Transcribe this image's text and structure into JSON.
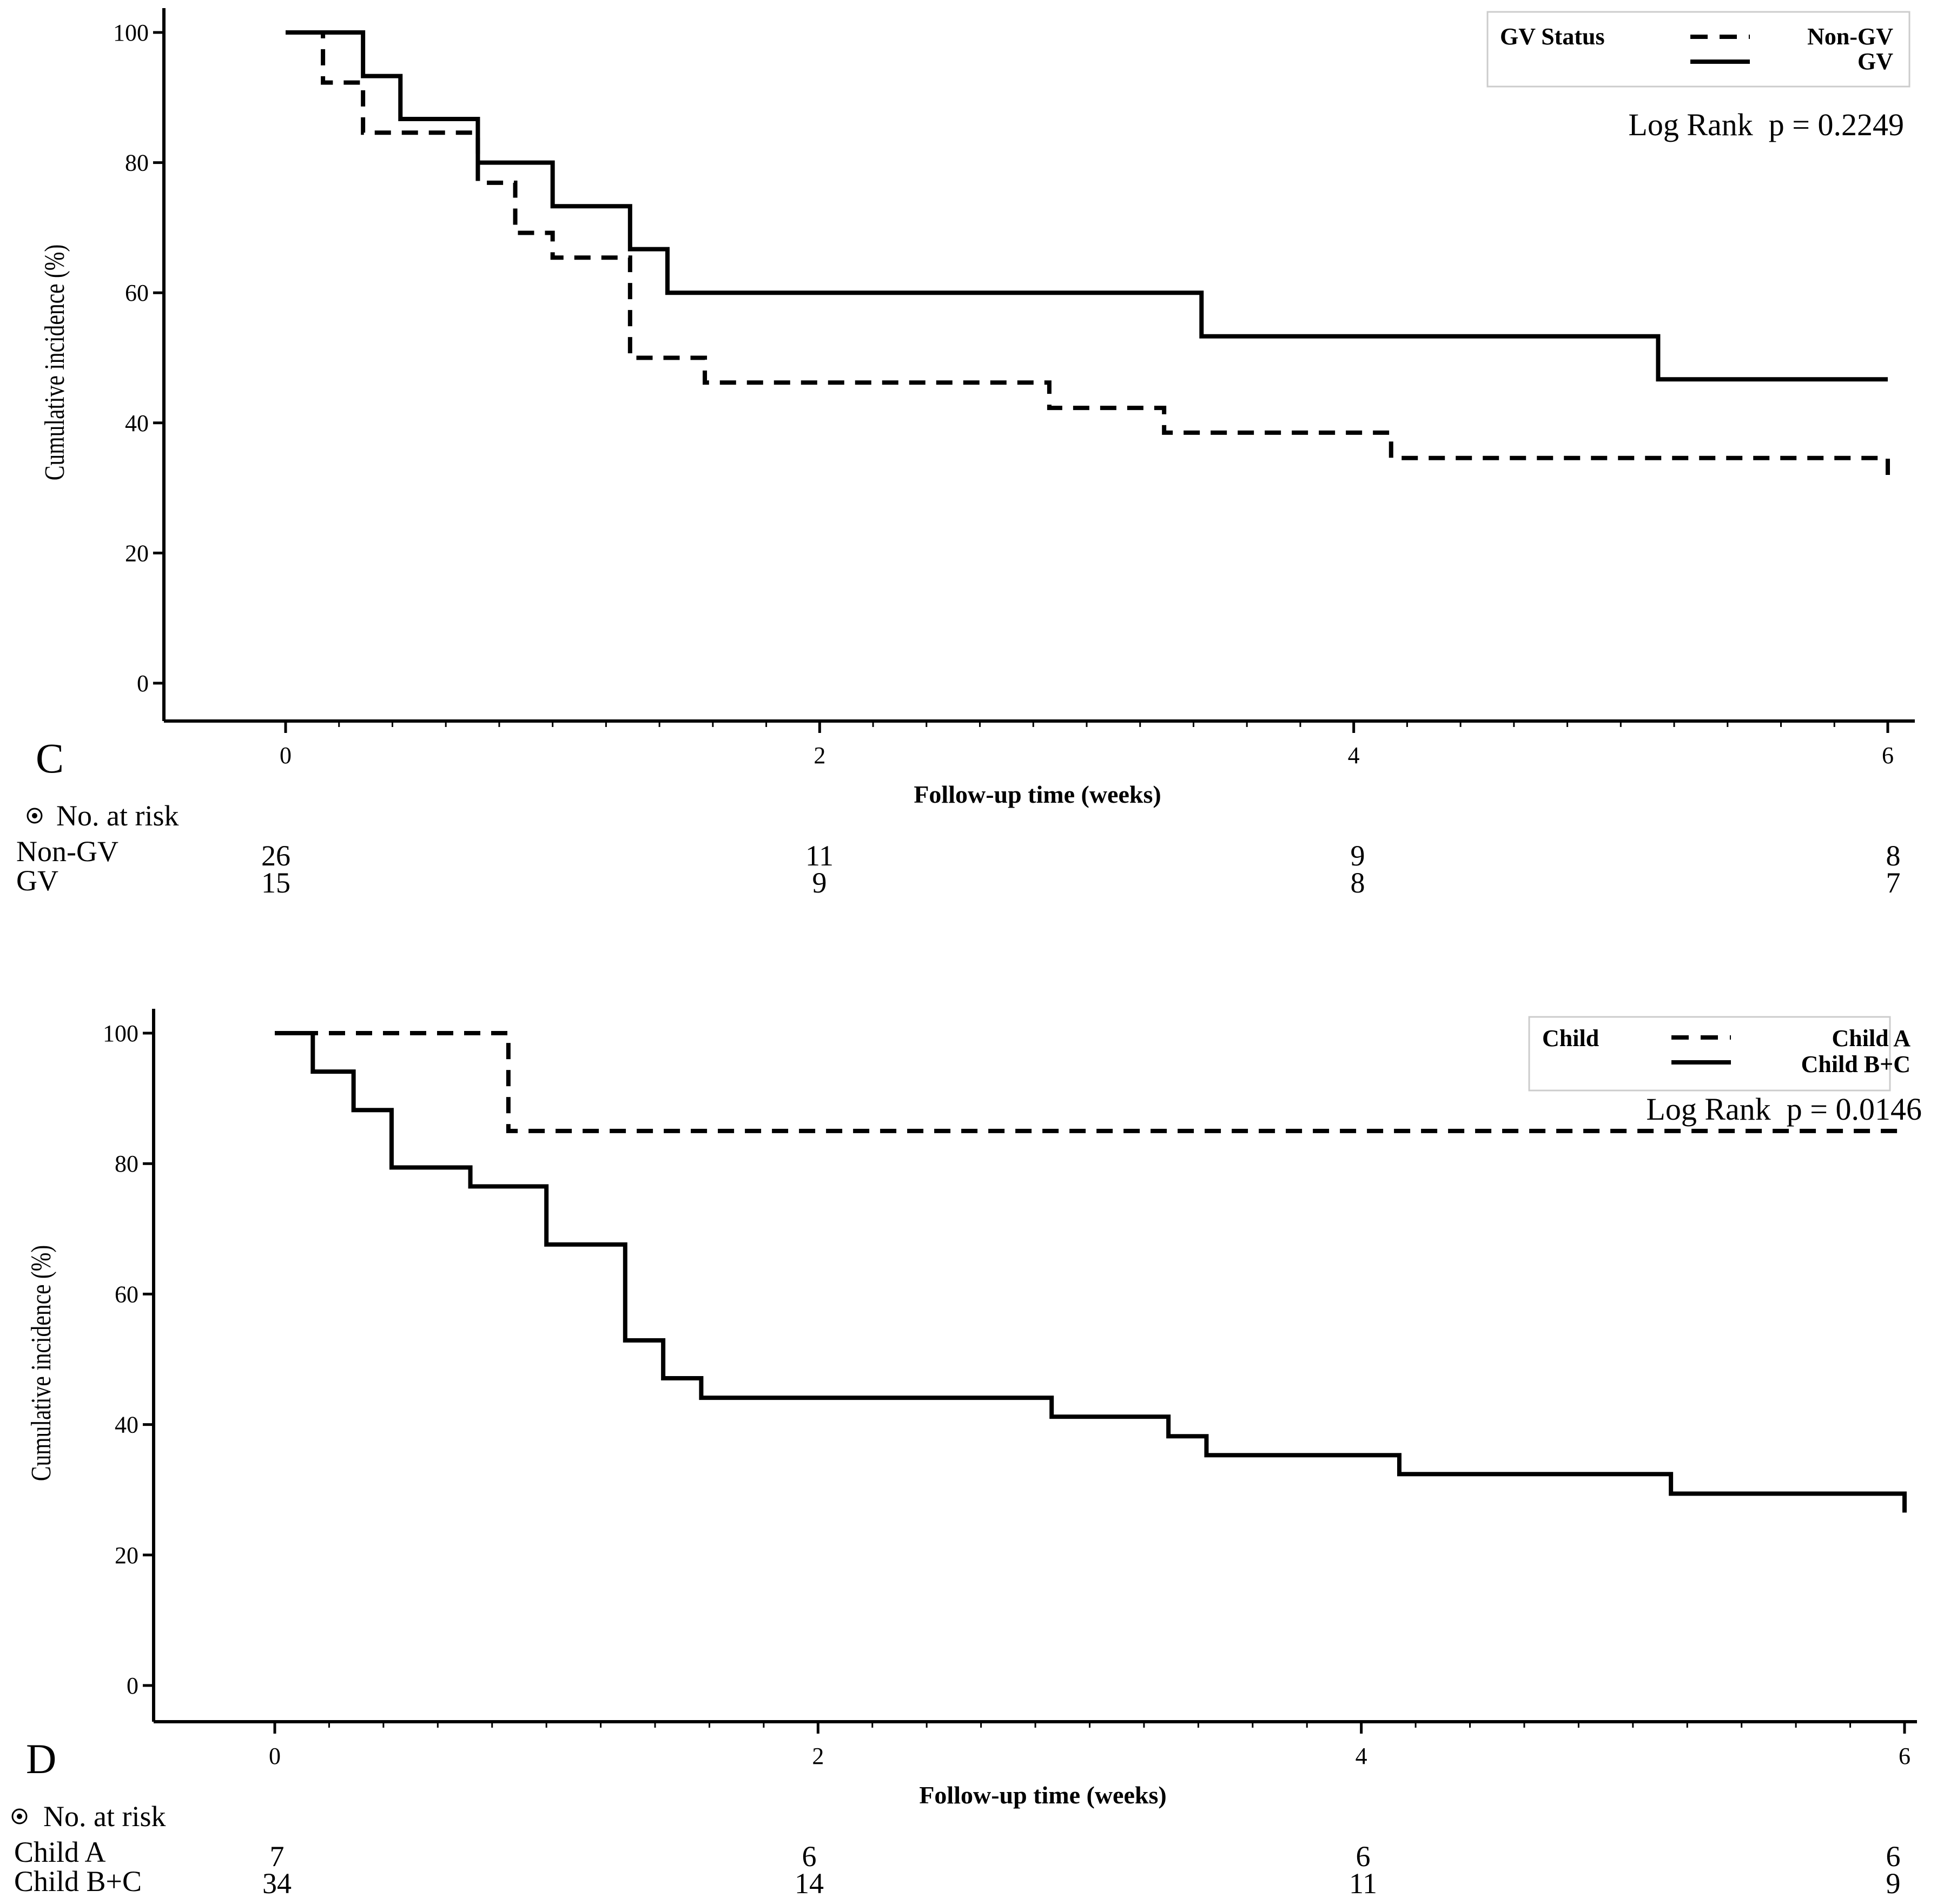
{
  "colors": {
    "line": "#000000",
    "legend_border": "#cccccc",
    "background": "#ffffff"
  },
  "chart_data": [
    {
      "type": "line",
      "panel_label": "C",
      "xlabel": "Follow-up time (weeks)",
      "ylabel": "Cumulative incidence (%)",
      "xlim": [
        0,
        6
      ],
      "ylim": [
        0,
        100
      ],
      "x_ticks": [
        "0",
        "2",
        "4",
        "6"
      ],
      "y_ticks": [
        "0",
        "20",
        "40",
        "60",
        "80",
        "100"
      ],
      "legend_title": "GV Status",
      "stat_text": "Log Rank  p = 0.2249",
      "series": [
        {
          "name": "Non-GV",
          "style": "dashed",
          "x": [
            0,
            0.14,
            0.29,
            0.72,
            0.86,
            1.0,
            1.29,
            1.57,
            2.86,
            3.29,
            4.14,
            6.0
          ],
          "y": [
            100,
            92.3,
            84.6,
            76.9,
            69.2,
            65.4,
            50.0,
            46.2,
            42.3,
            38.5,
            34.6,
            32.0
          ]
        },
        {
          "name": "GV",
          "style": "solid",
          "x": [
            0,
            0.29,
            0.43,
            0.72,
            1.0,
            1.29,
            1.43,
            3.43,
            5.14,
            6.0
          ],
          "y": [
            100,
            93.3,
            86.7,
            80.0,
            73.3,
            66.7,
            60.0,
            53.3,
            46.7,
            46.7
          ]
        }
      ],
      "risk_table": {
        "title": "No. at risk",
        "rows": [
          {
            "label": "Non-GV",
            "values": [
              "26",
              "11",
              "9",
              "8"
            ]
          },
          {
            "label": "GV",
            "values": [
              "15",
              "9",
              "8",
              "7"
            ]
          }
        ]
      }
    },
    {
      "type": "line",
      "panel_label": "D",
      "xlabel": "Follow-up time (weeks)",
      "ylabel": "Cumulative incidence (%)",
      "xlim": [
        0,
        6
      ],
      "ylim": [
        0,
        100
      ],
      "x_ticks": [
        "0",
        "2",
        "4",
        "6"
      ],
      "y_ticks": [
        "0",
        "20",
        "40",
        "60",
        "80",
        "100"
      ],
      "legend_title": "Child",
      "stat_text": "Log Rank  p = 0.0146",
      "series": [
        {
          "name": "Child A",
          "style": "dashed",
          "x": [
            0,
            0.86,
            6.0
          ],
          "y": [
            100,
            85.0,
            85.0
          ]
        },
        {
          "name": "Child B+C",
          "style": "solid",
          "x": [
            0,
            0.14,
            0.29,
            0.43,
            0.72,
            1.0,
            1.29,
            1.43,
            1.57,
            2.86,
            3.29,
            3.43,
            4.14,
            5.14,
            6.0
          ],
          "y": [
            100,
            94.1,
            88.2,
            79.4,
            76.5,
            67.6,
            52.9,
            47.1,
            44.1,
            41.2,
            38.2,
            35.3,
            32.4,
            29.4,
            26.5
          ]
        }
      ],
      "risk_table": {
        "title": "No. at risk",
        "rows": [
          {
            "label": "Child A",
            "values": [
              "7",
              "6",
              "6",
              "6"
            ]
          },
          {
            "label": "Child B+C",
            "values": [
              "34",
              "14",
              "11",
              "9"
            ]
          }
        ]
      }
    }
  ]
}
